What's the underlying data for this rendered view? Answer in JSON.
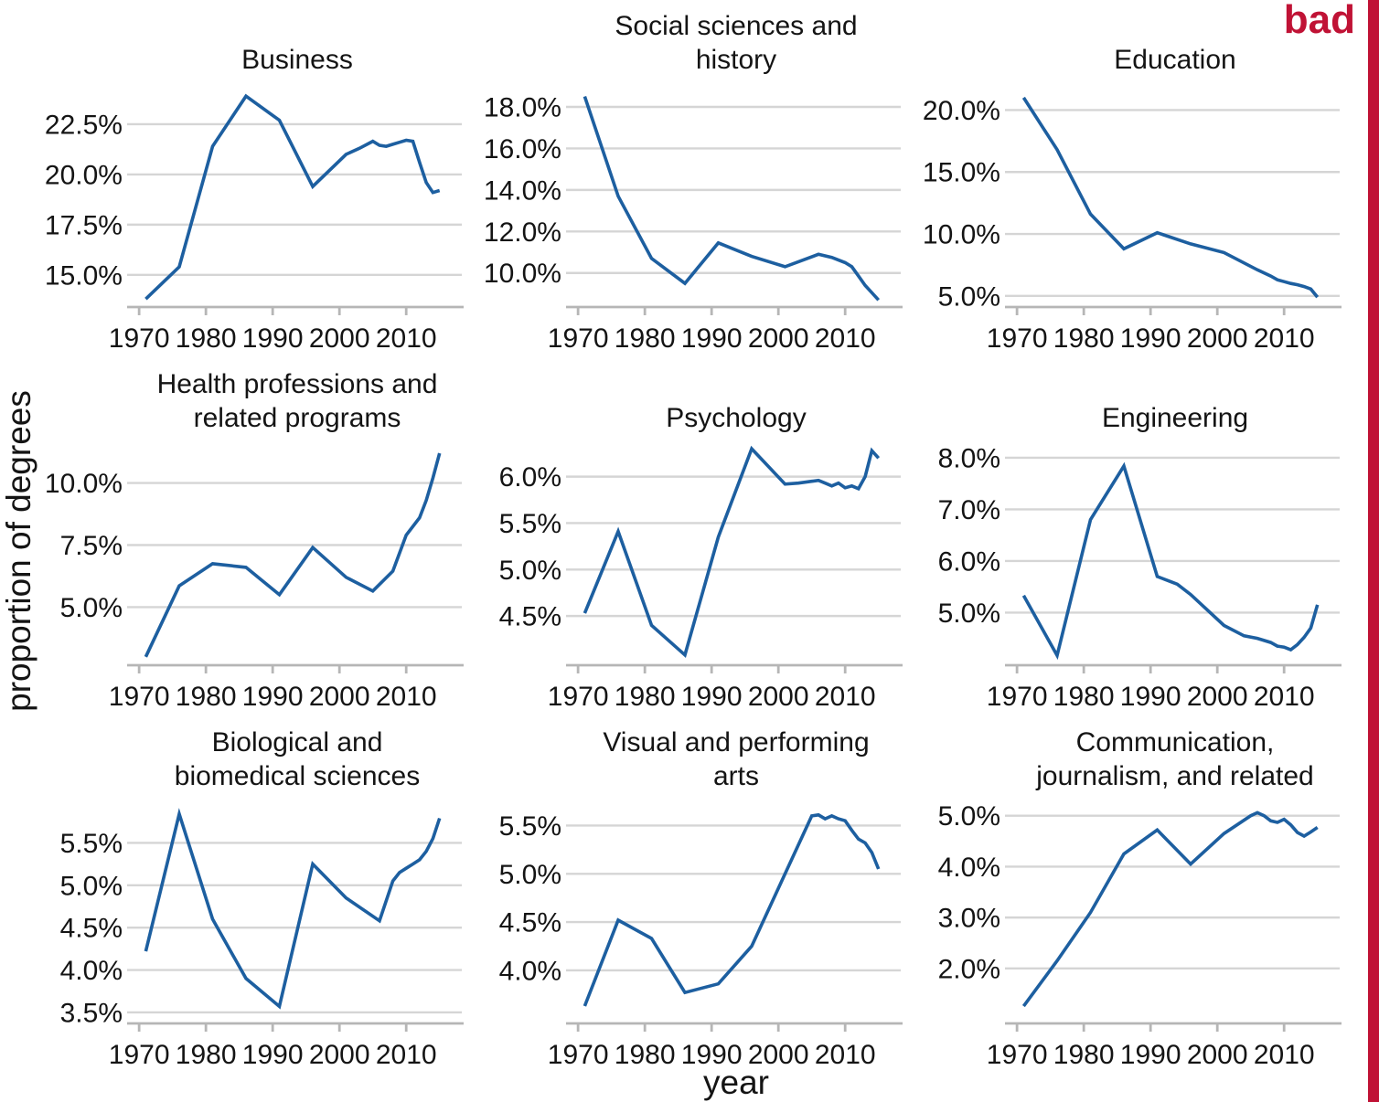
{
  "stamp": {
    "label": "bad"
  },
  "figure": {
    "ylabel": "proportion of degrees",
    "xlabel": "year"
  },
  "style": {
    "line_color": "#1d5fa0",
    "grid_color": "#d5d5d5",
    "axis_color": "#b6b6b6",
    "text_color": "#141414",
    "stamp_color": "#c01235",
    "background": "#ffffff"
  },
  "axes": {
    "xticks": [
      1970,
      1980,
      1990,
      2000,
      2010
    ],
    "xtick_labels": [
      "1970",
      "1980",
      "1990",
      "2000",
      "2010"
    ],
    "xlim": [
      1968.2,
      2018.6
    ],
    "grid": "horizontal-only",
    "legend": "none"
  },
  "chart_data": [
    {
      "type": "line",
      "title_lines": [
        "Business"
      ],
      "ylim": [
        13.4,
        24.5
      ],
      "ytick_values": [
        15.0,
        17.5,
        20.0,
        22.5
      ],
      "ytick_labels": [
        "15.0%",
        "17.5%",
        "20.0%",
        "22.5%"
      ],
      "x": [
        1971,
        1976,
        1981,
        1986,
        1991,
        1996,
        2001,
        2003,
        2005,
        2006,
        2007,
        2008,
        2009,
        2010,
        2011,
        2012,
        2013,
        2014,
        2015
      ],
      "y": [
        13.8,
        15.4,
        21.4,
        23.9,
        22.7,
        19.4,
        21.0,
        21.3,
        21.65,
        21.45,
        21.4,
        21.5,
        21.6,
        21.7,
        21.65,
        20.6,
        19.6,
        19.1,
        19.2
      ]
    },
    {
      "type": "line",
      "title_lines": [
        "Social sciences and",
        "history"
      ],
      "ylim": [
        8.36,
        19.1
      ],
      "ytick_values": [
        10.0,
        12.0,
        14.0,
        16.0,
        18.0
      ],
      "ytick_labels": [
        "10.0%",
        "12.0%",
        "14.0%",
        "16.0%",
        "18.0%"
      ],
      "x": [
        1971,
        1976,
        1981,
        1986,
        1991,
        1996,
        2001,
        2006,
        2008,
        2010,
        2011,
        2012,
        2013,
        2014,
        2015
      ],
      "y": [
        18.5,
        13.7,
        10.7,
        9.5,
        11.45,
        10.8,
        10.3,
        10.9,
        10.75,
        10.5,
        10.3,
        9.85,
        9.4,
        9.05,
        8.7
      ]
    },
    {
      "type": "line",
      "title_lines": [
        "Education"
      ],
      "ylim": [
        4.1,
        22.1
      ],
      "ytick_values": [
        5.0,
        10.0,
        15.0,
        20.0
      ],
      "ytick_labels": [
        "5.0%",
        "10.0%",
        "15.0%",
        "20.0%"
      ],
      "x": [
        1971,
        1976,
        1981,
        1986,
        1991,
        1996,
        2001,
        2006,
        2008,
        2009,
        2010,
        2011,
        2012,
        2013,
        2014,
        2015
      ],
      "y": [
        21.0,
        16.8,
        11.6,
        8.8,
        10.1,
        9.2,
        8.5,
        7.1,
        6.6,
        6.3,
        6.15,
        6.0,
        5.9,
        5.75,
        5.55,
        4.9
      ]
    },
    {
      "type": "line",
      "title_lines": [
        "Health professions and",
        "related programs"
      ],
      "ylim": [
        2.66,
        11.64
      ],
      "ytick_values": [
        5.0,
        7.5,
        10.0
      ],
      "ytick_labels": [
        "5.0%",
        "7.5%",
        "10.0%"
      ],
      "x": [
        1971,
        1976,
        1981,
        1986,
        1991,
        1996,
        2001,
        2005,
        2008,
        2010,
        2012,
        2013,
        2014,
        2015
      ],
      "y": [
        3.0,
        5.86,
        6.75,
        6.6,
        5.5,
        7.4,
        6.2,
        5.65,
        6.45,
        7.9,
        8.6,
        9.3,
        10.2,
        11.2
      ]
    },
    {
      "type": "line",
      "title_lines": [
        "Psychology"
      ],
      "ylim": [
        3.97,
        6.37
      ],
      "ytick_values": [
        4.5,
        5.0,
        5.5,
        6.0
      ],
      "ytick_labels": [
        "4.5%",
        "5.0%",
        "5.5%",
        "6.0%"
      ],
      "x": [
        1971,
        1976,
        1981,
        1986,
        1991,
        1996,
        2001,
        2003,
        2005,
        2006,
        2007,
        2008,
        2009,
        2010,
        2011,
        2012,
        2013,
        2014,
        2015
      ],
      "y": [
        4.53,
        5.41,
        4.4,
        4.08,
        5.35,
        6.3,
        5.92,
        5.93,
        5.95,
        5.96,
        5.93,
        5.9,
        5.93,
        5.88,
        5.9,
        5.87,
        6.0,
        6.28,
        6.2
      ]
    },
    {
      "type": "line",
      "title_lines": [
        "Engineering"
      ],
      "ylim": [
        3.98,
        8.3
      ],
      "ytick_values": [
        5.0,
        6.0,
        7.0,
        8.0
      ],
      "ytick_labels": [
        "5.0%",
        "6.0%",
        "7.0%",
        "8.0%"
      ],
      "x": [
        1971,
        1976,
        1981,
        1986,
        1991,
        1994,
        1996,
        2001,
        2004,
        2006,
        2008,
        2009,
        2010,
        2011,
        2012,
        2013,
        2014,
        2015
      ],
      "y": [
        5.33,
        4.17,
        6.8,
        7.84,
        5.7,
        5.55,
        5.35,
        4.75,
        4.55,
        4.5,
        4.42,
        4.35,
        4.33,
        4.28,
        4.38,
        4.52,
        4.7,
        5.15
      ]
    },
    {
      "type": "line",
      "title_lines": [
        "Biological and",
        "biomedical sciences"
      ],
      "ylim": [
        3.37,
        6.0
      ],
      "ytick_values": [
        3.5,
        4.0,
        4.5,
        5.0,
        5.5
      ],
      "ytick_labels": [
        "3.5%",
        "4.0%",
        "4.5%",
        "5.0%",
        "5.5%"
      ],
      "x": [
        1971,
        1976,
        1981,
        1986,
        1991,
        1996,
        2001,
        2006,
        2008,
        2009,
        2010,
        2011,
        2012,
        2013,
        2014,
        2015
      ],
      "y": [
        4.22,
        5.84,
        4.6,
        3.9,
        3.57,
        5.25,
        4.85,
        4.58,
        5.05,
        5.15,
        5.2,
        5.25,
        5.3,
        5.4,
        5.55,
        5.79
      ]
    },
    {
      "type": "line",
      "title_lines": [
        "Visual and performing",
        "arts"
      ],
      "ylim": [
        3.45,
        5.76
      ],
      "ytick_values": [
        4.0,
        4.5,
        5.0,
        5.5
      ],
      "ytick_labels": [
        "4.0%",
        "4.5%",
        "5.0%",
        "5.5%"
      ],
      "x": [
        1971,
        1976,
        1981,
        1986,
        1991,
        1996,
        2001,
        2005,
        2006,
        2007,
        2008,
        2009,
        2010,
        2011,
        2012,
        2013,
        2014,
        2015
      ],
      "y": [
        3.63,
        4.52,
        4.33,
        3.77,
        3.86,
        4.25,
        5.0,
        5.6,
        5.61,
        5.57,
        5.6,
        5.57,
        5.55,
        5.45,
        5.36,
        5.32,
        5.22,
        5.05
      ]
    },
    {
      "type": "line",
      "title_lines": [
        "Communication,",
        "journalism, and related"
      ],
      "ylim": [
        0.92,
        5.3
      ],
      "ytick_values": [
        2.0,
        3.0,
        4.0,
        5.0
      ],
      "ytick_labels": [
        "2.0%",
        "3.0%",
        "4.0%",
        "5.0%"
      ],
      "x": [
        1971,
        1976,
        1981,
        1986,
        1991,
        1996,
        2001,
        2005,
        2006,
        2007,
        2008,
        2009,
        2010,
        2011,
        2012,
        2013,
        2014,
        2015
      ],
      "y": [
        1.26,
        2.15,
        3.1,
        4.25,
        4.72,
        4.05,
        4.65,
        5.0,
        5.06,
        5.0,
        4.9,
        4.87,
        4.93,
        4.82,
        4.67,
        4.6,
        4.68,
        4.77
      ]
    }
  ]
}
